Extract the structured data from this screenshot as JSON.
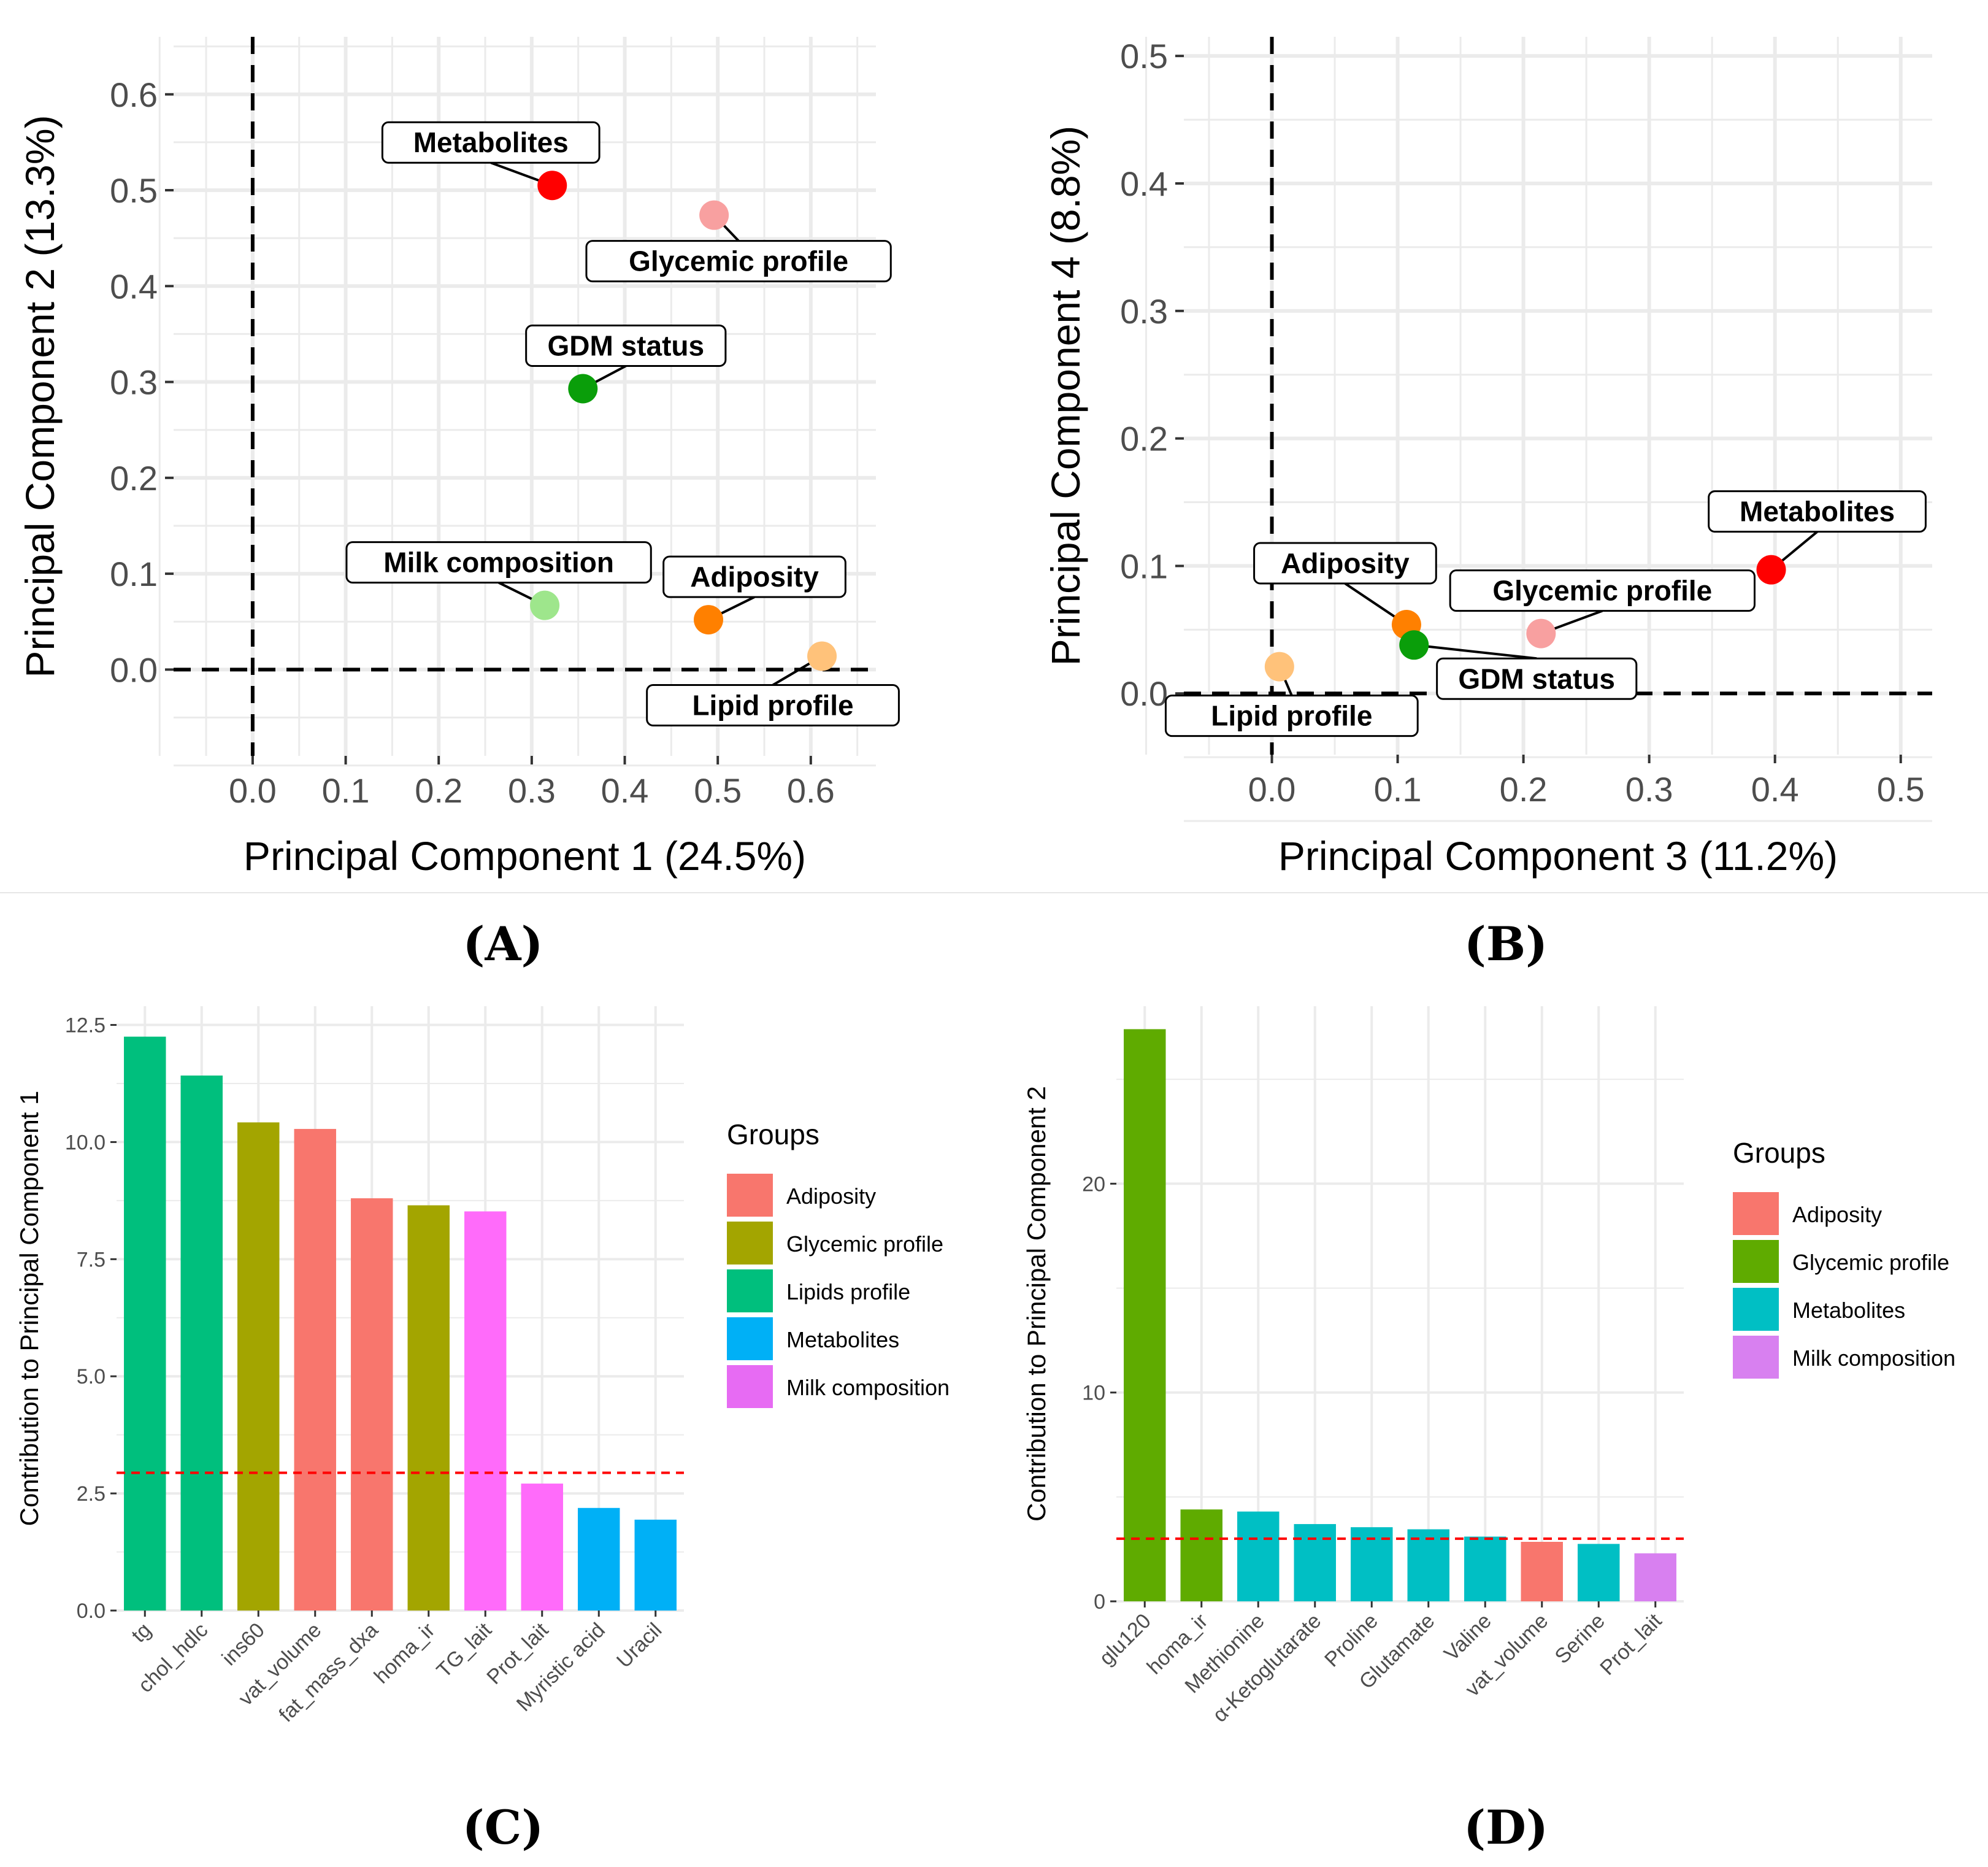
{
  "colors": {
    "grid": "#ebebeb",
    "axis_text": "#4d4d4d",
    "refline": "#000000",
    "threshold": "#ff0000"
  },
  "chart_data": [
    {
      "panel": "A",
      "panel_label": "(A)",
      "type": "scatter",
      "xlabel": "Principal Component 1 (24.5%)",
      "ylabel": "Principal Component 2 (13.3%)",
      "xlim": [
        -0.085,
        0.67
      ],
      "ylim": [
        -0.09,
        0.66
      ],
      "xticks": [
        "0.0",
        "0.1",
        "0.2",
        "0.3",
        "0.4",
        "0.5",
        "0.6"
      ],
      "yticks": [
        "0.0",
        "0.1",
        "0.2",
        "0.3",
        "0.4",
        "0.5",
        "0.6"
      ],
      "points": [
        {
          "name": "Metabolites",
          "x": 0.322,
          "y": 0.505,
          "color": "#ff0000",
          "label_pos": "above-left"
        },
        {
          "name": "Glycemic profile",
          "x": 0.496,
          "y": 0.474,
          "color": "#f8a0a0",
          "label_pos": "below-right"
        },
        {
          "name": "GDM status",
          "x": 0.355,
          "y": 0.293,
          "color": "#0a9e0a",
          "label_pos": "above-right"
        },
        {
          "name": "Milk composition",
          "x": 0.314,
          "y": 0.067,
          "color": "#9ee68c",
          "label_pos": "above-left"
        },
        {
          "name": "Adiposity",
          "x": 0.49,
          "y": 0.052,
          "color": "#ff8000",
          "label_pos": "above-right"
        },
        {
          "name": "Lipid profile",
          "x": 0.612,
          "y": 0.014,
          "color": "#ffc27a",
          "label_pos": "below-left"
        }
      ]
    },
    {
      "panel": "B",
      "panel_label": "(B)",
      "type": "scatter",
      "xlabel": "Principal Component 3 (11.2%)",
      "ylabel": "Principal Component 4 (8.8%)",
      "xlim": [
        -0.07,
        0.525
      ],
      "ylim": [
        -0.048,
        0.515
      ],
      "xticks": [
        "0.0",
        "0.1",
        "0.2",
        "0.3",
        "0.4",
        "0.5"
      ],
      "yticks": [
        "0.0",
        "0.1",
        "0.2",
        "0.3",
        "0.4",
        "0.5"
      ],
      "points": [
        {
          "name": "Metabolites",
          "x": 0.397,
          "y": 0.097,
          "color": "#ff0000",
          "label_pos": "above-right"
        },
        {
          "name": "Glycemic profile",
          "x": 0.214,
          "y": 0.047,
          "color": "#f8a0a0",
          "label_pos": "above-right"
        },
        {
          "name": "Adiposity",
          "x": 0.107,
          "y": 0.054,
          "color": "#ff8000",
          "label_pos": "above-left"
        },
        {
          "name": "GDM status",
          "x": 0.113,
          "y": 0.038,
          "color": "#0a9e0a",
          "label_pos": "below-right"
        },
        {
          "name": "Lipid profile",
          "x": 0.006,
          "y": 0.021,
          "color": "#ffc27a",
          "label_pos": "below-right"
        }
      ]
    },
    {
      "panel": "C",
      "panel_label": "(C)",
      "type": "bar",
      "title": "",
      "xlabel": "",
      "ylabel": "Contribution to Principal Component 1",
      "ylim": [
        0,
        12.9
      ],
      "yticks": [
        "0.0",
        "2.5",
        "5.0",
        "7.5",
        "10.0",
        "12.5"
      ],
      "threshold": 2.94,
      "legend_title": "Groups",
      "legend": [
        {
          "label": "Adiposity",
          "color": "#f8766d"
        },
        {
          "label": "Glycemic profile",
          "color": "#a3a500"
        },
        {
          "label": "Lipids profile",
          "color": "#00bf7d"
        },
        {
          "label": "Metabolites",
          "color": "#00b0f6"
        },
        {
          "label": "Milk composition",
          "color": "#e76bf3"
        }
      ],
      "bars": [
        {
          "category": "tg",
          "value": 12.25,
          "color": "#00bf7d"
        },
        {
          "category": "chol_hdlc",
          "value": 11.42,
          "color": "#00bf7d"
        },
        {
          "category": "ins60",
          "value": 10.42,
          "color": "#a3a500"
        },
        {
          "category": "vat_volume",
          "value": 10.28,
          "color": "#f8766d"
        },
        {
          "category": "fat_mass_dxa",
          "value": 8.8,
          "color": "#f8766d"
        },
        {
          "category": "homa_ir",
          "value": 8.65,
          "color": "#a3a500"
        },
        {
          "category": "TG_lait",
          "value": 8.52,
          "color": "#ff6bfa"
        },
        {
          "category": "Prot_lait",
          "value": 2.71,
          "color": "#ff6bfa"
        },
        {
          "category": "Myristic acid",
          "value": 2.19,
          "color": "#00b0f6"
        },
        {
          "category": "Uracil",
          "value": 1.94,
          "color": "#00b0f6"
        }
      ]
    },
    {
      "panel": "D",
      "panel_label": "(D)",
      "type": "bar",
      "title": "",
      "xlabel": "",
      "ylabel": "Contribution to Principal Component 2",
      "ylim": [
        0,
        28.5
      ],
      "yticks": [
        "0",
        "10",
        "20"
      ],
      "threshold": 3.0,
      "legend_title": "Groups",
      "legend": [
        {
          "label": "Adiposity",
          "color": "#f8766d"
        },
        {
          "label": "Glycemic profile",
          "color": "#5fab00"
        },
        {
          "label": "Metabolites",
          "color": "#00bfc4"
        },
        {
          "label": "Milk composition",
          "color": "#d880f0"
        }
      ],
      "bars": [
        {
          "category": "glu120",
          "value": 27.4,
          "color": "#5fab00"
        },
        {
          "category": "homa_ir",
          "value": 4.4,
          "color": "#5fab00"
        },
        {
          "category": "Methionine",
          "value": 4.3,
          "color": "#00bfc4"
        },
        {
          "category": "α-Ketoglutarate",
          "value": 3.7,
          "color": "#00bfc4"
        },
        {
          "category": "Proline",
          "value": 3.55,
          "color": "#00bfc4"
        },
        {
          "category": "Glutamate",
          "value": 3.45,
          "color": "#00bfc4"
        },
        {
          "category": "Valine",
          "value": 3.1,
          "color": "#00bfc4"
        },
        {
          "category": "vat_volume",
          "value": 2.85,
          "color": "#f8766d"
        },
        {
          "category": "Serine",
          "value": 2.75,
          "color": "#00bfc4"
        },
        {
          "category": "Prot_lait",
          "value": 2.3,
          "color": "#d880f0"
        }
      ]
    }
  ]
}
